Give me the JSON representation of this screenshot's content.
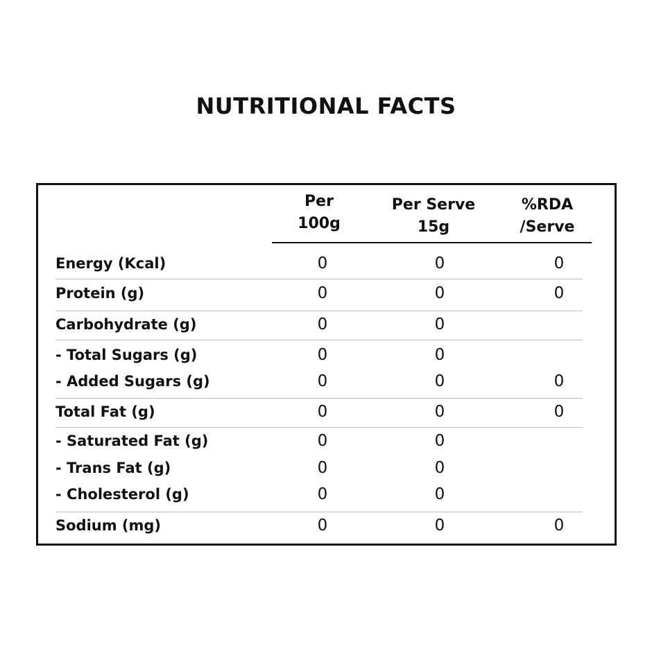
{
  "title": "NUTRITIONAL FACTS",
  "table": {
    "headers": [
      [
        "Per",
        "100g"
      ],
      [
        "Per Serve",
        "15g"
      ],
      [
        "%RDA",
        "/Serve"
      ]
    ],
    "groups": [
      [
        {
          "label": "Energy (Kcal)",
          "cells": [
            0,
            0,
            0
          ]
        }
      ],
      [
        {
          "label": "Protein (g)",
          "cells": [
            0,
            0,
            0
          ]
        }
      ],
      [
        {
          "label": "Carbohydrate (g)",
          "cells": [
            0,
            0,
            null
          ]
        }
      ],
      [
        {
          "label": "- Total Sugars (g)",
          "cells": [
            0,
            0,
            null
          ]
        },
        {
          "label": "- Added Sugars (g)",
          "cells": [
            0,
            0,
            0
          ]
        }
      ],
      [
        {
          "label": "Total Fat (g)",
          "cells": [
            0,
            0,
            0
          ]
        }
      ],
      [
        {
          "label": "- Saturated Fat (g)",
          "cells": [
            0,
            0,
            null
          ]
        },
        {
          "label": "- Trans Fat (g)",
          "cells": [
            0,
            0,
            null
          ]
        },
        {
          "label": "- Cholesterol (g)",
          "cells": [
            0,
            0,
            null
          ]
        }
      ],
      [
        {
          "label": "Sodium (mg)",
          "cells": [
            0,
            0,
            0
          ]
        }
      ]
    ]
  }
}
